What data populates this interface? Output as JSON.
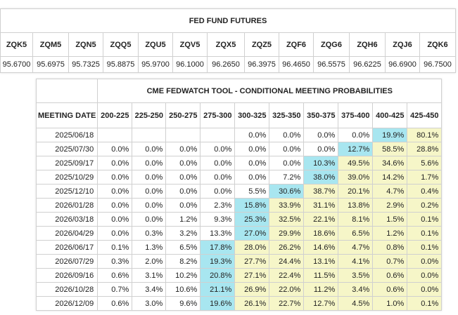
{
  "futures": {
    "title": "FED FUND FUTURES",
    "columns": [
      "ZQK5",
      "ZQM5",
      "ZQN5",
      "ZQQ5",
      "ZQU5",
      "ZQV5",
      "ZQX5",
      "ZQZ5",
      "ZQF6",
      "ZQG6",
      "ZQH6",
      "ZQJ6",
      "ZQK6"
    ],
    "values": [
      "95.6700",
      "95.6975",
      "95.7325",
      "95.8875",
      "95.9700",
      "96.1000",
      "96.2650",
      "96.3975",
      "96.4650",
      "96.5575",
      "96.6225",
      "96.6900",
      "96.7500"
    ]
  },
  "fedwatch": {
    "title": "CME FEDWATCH TOOL - CONDITIONAL MEETING PROBABILITIES",
    "date_header": "MEETING DATE",
    "columns": [
      "200-225",
      "225-250",
      "250-275",
      "275-300",
      "300-325",
      "325-350",
      "350-375",
      "375-400",
      "400-425",
      "425-450"
    ],
    "colors": {
      "highlight": "#a8e6f0",
      "tint": "#f6f6c8"
    },
    "rows": [
      {
        "date": "2025/06/18",
        "values": [
          "",
          "",
          "",
          "",
          "0.0%",
          "0.0%",
          "0.0%",
          "0.0%",
          "19.9%",
          "80.1%"
        ],
        "max": 9,
        "tint_from": 10
      },
      {
        "date": "2025/07/30",
        "values": [
          "0.0%",
          "0.0%",
          "0.0%",
          "0.0%",
          "0.0%",
          "0.0%",
          "0.0%",
          "12.7%",
          "58.5%",
          "28.8%"
        ],
        "max": 8,
        "tint_from": 9
      },
      {
        "date": "2025/09/17",
        "values": [
          "0.0%",
          "0.0%",
          "0.0%",
          "0.0%",
          "0.0%",
          "0.0%",
          "10.3%",
          "49.5%",
          "34.6%",
          "5.6%"
        ],
        "max": 7,
        "tint_from": 8
      },
      {
        "date": "2025/10/29",
        "values": [
          "0.0%",
          "0.0%",
          "0.0%",
          "0.0%",
          "0.0%",
          "7.2%",
          "38.0%",
          "39.0%",
          "14.2%",
          "1.7%"
        ],
        "max": 7,
        "tint_from": 8
      },
      {
        "date": "2025/12/10",
        "values": [
          "0.0%",
          "0.0%",
          "0.0%",
          "0.0%",
          "5.5%",
          "30.6%",
          "38.7%",
          "20.1%",
          "4.7%",
          "0.4%"
        ],
        "max": 6,
        "tint_from": 7
      },
      {
        "date": "2026/01/28",
        "values": [
          "0.0%",
          "0.0%",
          "0.0%",
          "2.3%",
          "15.8%",
          "33.9%",
          "31.1%",
          "13.8%",
          "2.9%",
          "0.2%"
        ],
        "max": 5,
        "tint_from": 6
      },
      {
        "date": "2026/03/18",
        "values": [
          "0.0%",
          "0.0%",
          "1.2%",
          "9.3%",
          "25.3%",
          "32.5%",
          "22.1%",
          "8.1%",
          "1.5%",
          "0.1%"
        ],
        "max": 5,
        "tint_from": 6
      },
      {
        "date": "2026/04/29",
        "values": [
          "0.0%",
          "0.3%",
          "3.2%",
          "13.3%",
          "27.0%",
          "29.9%",
          "18.6%",
          "6.5%",
          "1.2%",
          "0.1%"
        ],
        "max": 5,
        "tint_from": 6
      },
      {
        "date": "2026/06/17",
        "values": [
          "0.1%",
          "1.3%",
          "6.5%",
          "17.8%",
          "28.0%",
          "26.2%",
          "14.6%",
          "4.7%",
          "0.8%",
          "0.1%"
        ],
        "max": 4,
        "tint_from": 5
      },
      {
        "date": "2026/07/29",
        "values": [
          "0.3%",
          "2.0%",
          "8.2%",
          "19.3%",
          "27.7%",
          "24.4%",
          "13.1%",
          "4.1%",
          "0.7%",
          "0.0%"
        ],
        "max": 4,
        "tint_from": 5
      },
      {
        "date": "2026/09/16",
        "values": [
          "0.6%",
          "3.1%",
          "10.2%",
          "20.8%",
          "27.1%",
          "22.4%",
          "11.5%",
          "3.5%",
          "0.6%",
          "0.0%"
        ],
        "max": 4,
        "tint_from": 5
      },
      {
        "date": "2026/10/28",
        "values": [
          "0.7%",
          "3.4%",
          "10.6%",
          "21.1%",
          "26.9%",
          "22.0%",
          "11.2%",
          "3.4%",
          "0.6%",
          "0.0%"
        ],
        "max": 4,
        "tint_from": 5
      },
      {
        "date": "2026/12/09",
        "values": [
          "0.6%",
          "3.0%",
          "9.6%",
          "19.6%",
          "26.1%",
          "22.7%",
          "12.7%",
          "4.5%",
          "1.0%",
          "0.1%"
        ],
        "max": 4,
        "tint_from": 5
      }
    ]
  }
}
